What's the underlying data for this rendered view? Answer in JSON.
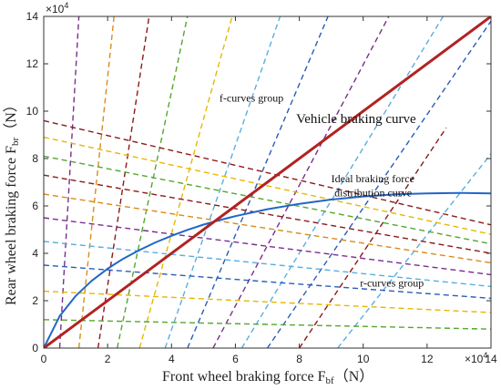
{
  "chart_data": {
    "type": "line",
    "x_label": {
      "main": "Front wheel braking force F",
      "sub": "bf",
      "unit": "（N）"
    },
    "y_label": {
      "main": "Rear wheel braking  force F",
      "sub": "br",
      "unit": "（N）"
    },
    "x_scale_label": "×10",
    "x_scale_exp": "4",
    "y_scale_label": "×10",
    "y_scale_exp": "4",
    "xlim": [
      0,
      140000
    ],
    "ylim": [
      0,
      140000
    ],
    "x_ticks": [
      0,
      20000,
      40000,
      60000,
      80000,
      100000,
      120000,
      140000
    ],
    "x_tick_labels": [
      "0",
      "2",
      "4",
      "6",
      "8",
      "10",
      "12",
      "14"
    ],
    "y_ticks": [
      0,
      20000,
      40000,
      60000,
      80000,
      100000,
      120000,
      140000
    ],
    "y_tick_labels": [
      "0",
      "2",
      "4",
      "6",
      "8",
      "10",
      "12",
      "14"
    ],
    "annotations": [
      {
        "text": "f-curves group",
        "x": 55000,
        "y": 104000,
        "size": "small"
      },
      {
        "text": "Vehicle braking curve",
        "x": 79000,
        "y": 95000,
        "size": "large"
      },
      {
        "text": "Ideal braking force",
        "x": 90000,
        "y": 70000,
        "size": "small"
      },
      {
        "text": "distribution curve",
        "x": 91000,
        "y": 64000,
        "size": "small"
      },
      {
        "text": "r-curves group",
        "x": 99000,
        "y": 26000,
        "size": "small"
      }
    ],
    "series": [
      {
        "name": "Vehicle braking curve",
        "role": "beta",
        "color": "#b22222",
        "style": "solid",
        "width": 3,
        "x": [
          0,
          140000
        ],
        "y": [
          0,
          140000
        ]
      },
      {
        "name": "Ideal braking force distribution curve",
        "role": "ideal",
        "color": "#2166c8",
        "style": "solid",
        "width": 2,
        "x": [
          0,
          5000,
          10000,
          15000,
          20000,
          25000,
          30000,
          35000,
          40000,
          45000,
          50000,
          55000,
          60000,
          70000,
          80000,
          90000,
          100000,
          110000,
          120000,
          130000,
          140000
        ],
        "y": [
          0,
          13500,
          22000,
          28400,
          33500,
          37800,
          41400,
          44600,
          47400,
          49900,
          52100,
          54000,
          55700,
          58600,
          60900,
          62700,
          64000,
          64900,
          65300,
          65500,
          65300
        ]
      },
      {
        "role": "f",
        "color": "#7b2d8e",
        "style": "dashed",
        "x": [
          5000,
          11000
        ],
        "y": [
          0,
          140000
        ]
      },
      {
        "role": "f",
        "color": "#d98c1c",
        "style": "dashed",
        "x": [
          11000,
          22000
        ],
        "y": [
          0,
          140000
        ]
      },
      {
        "role": "f",
        "color": "#8b1a1a",
        "style": "dashed",
        "x": [
          17000,
          33000
        ],
        "y": [
          0,
          140000
        ]
      },
      {
        "role": "f",
        "color": "#55a630",
        "style": "dashed",
        "x": [
          23000,
          45000
        ],
        "y": [
          0,
          140000
        ]
      },
      {
        "role": "f",
        "color": "#e6b800",
        "style": "dashed",
        "x": [
          30000,
          59000
        ],
        "y": [
          0,
          140000
        ]
      },
      {
        "role": "f",
        "color": "#5aaee0",
        "style": "dashed",
        "x": [
          38000,
          74000
        ],
        "y": [
          0,
          140000
        ]
      },
      {
        "role": "f",
        "color": "#2a5cb8",
        "style": "dashed",
        "x": [
          45000,
          89000
        ],
        "y": [
          0,
          140000
        ]
      },
      {
        "role": "f",
        "color": "#7b2d8e",
        "style": "dashed",
        "x": [
          53000,
          108000
        ],
        "y": [
          0,
          140000
        ]
      },
      {
        "role": "f",
        "color": "#5aaee0",
        "style": "dashed",
        "x": [
          62000,
          125000
        ],
        "y": [
          0,
          140000
        ]
      },
      {
        "role": "f",
        "color": "#2a5cb8",
        "style": "dashed",
        "x": [
          70000,
          140000
        ],
        "y": [
          0,
          138000
        ]
      },
      {
        "role": "f",
        "color": "#8b1a1a",
        "style": "dashed",
        "x": [
          80000,
          126000
        ],
        "y": [
          0,
          93000
        ]
      },
      {
        "role": "f",
        "color": "#5aaee0",
        "style": "dashed",
        "x": [
          92000,
          140000
        ],
        "y": [
          0,
          82000
        ]
      },
      {
        "role": "r",
        "color": "#8b1a1a",
        "style": "dashed",
        "x": [
          0,
          140000
        ],
        "y": [
          96000,
          52000
        ]
      },
      {
        "role": "r",
        "color": "#e6b800",
        "style": "dashed",
        "x": [
          0,
          140000
        ],
        "y": [
          89000,
          48000
        ]
      },
      {
        "role": "r",
        "color": "#55a630",
        "style": "dashed",
        "x": [
          0,
          140000
        ],
        "y": [
          81000,
          44000
        ]
      },
      {
        "role": "r",
        "color": "#8b1a1a",
        "style": "dashed",
        "x": [
          0,
          140000
        ],
        "y": [
          73000,
          40000
        ]
      },
      {
        "role": "r",
        "color": "#d98c1c",
        "style": "dashed",
        "x": [
          0,
          140000
        ],
        "y": [
          65000,
          36000
        ]
      },
      {
        "role": "r",
        "color": "#7b2d8e",
        "style": "dashed",
        "x": [
          0,
          140000
        ],
        "y": [
          55000,
          31000
        ]
      },
      {
        "role": "r",
        "color": "#5aaee0",
        "style": "dashed",
        "x": [
          0,
          140000
        ],
        "y": [
          45000,
          26000
        ]
      },
      {
        "role": "r",
        "color": "#2a5cb8",
        "style": "dashed",
        "x": [
          0,
          140000
        ],
        "y": [
          35000,
          21000
        ]
      },
      {
        "role": "r",
        "color": "#e6b800",
        "style": "dashed",
        "x": [
          0,
          140000
        ],
        "y": [
          24000,
          15000
        ]
      },
      {
        "role": "r",
        "color": "#55a630",
        "style": "dashed",
        "x": [
          0,
          140000
        ],
        "y": [
          12000,
          8000
        ]
      }
    ]
  }
}
